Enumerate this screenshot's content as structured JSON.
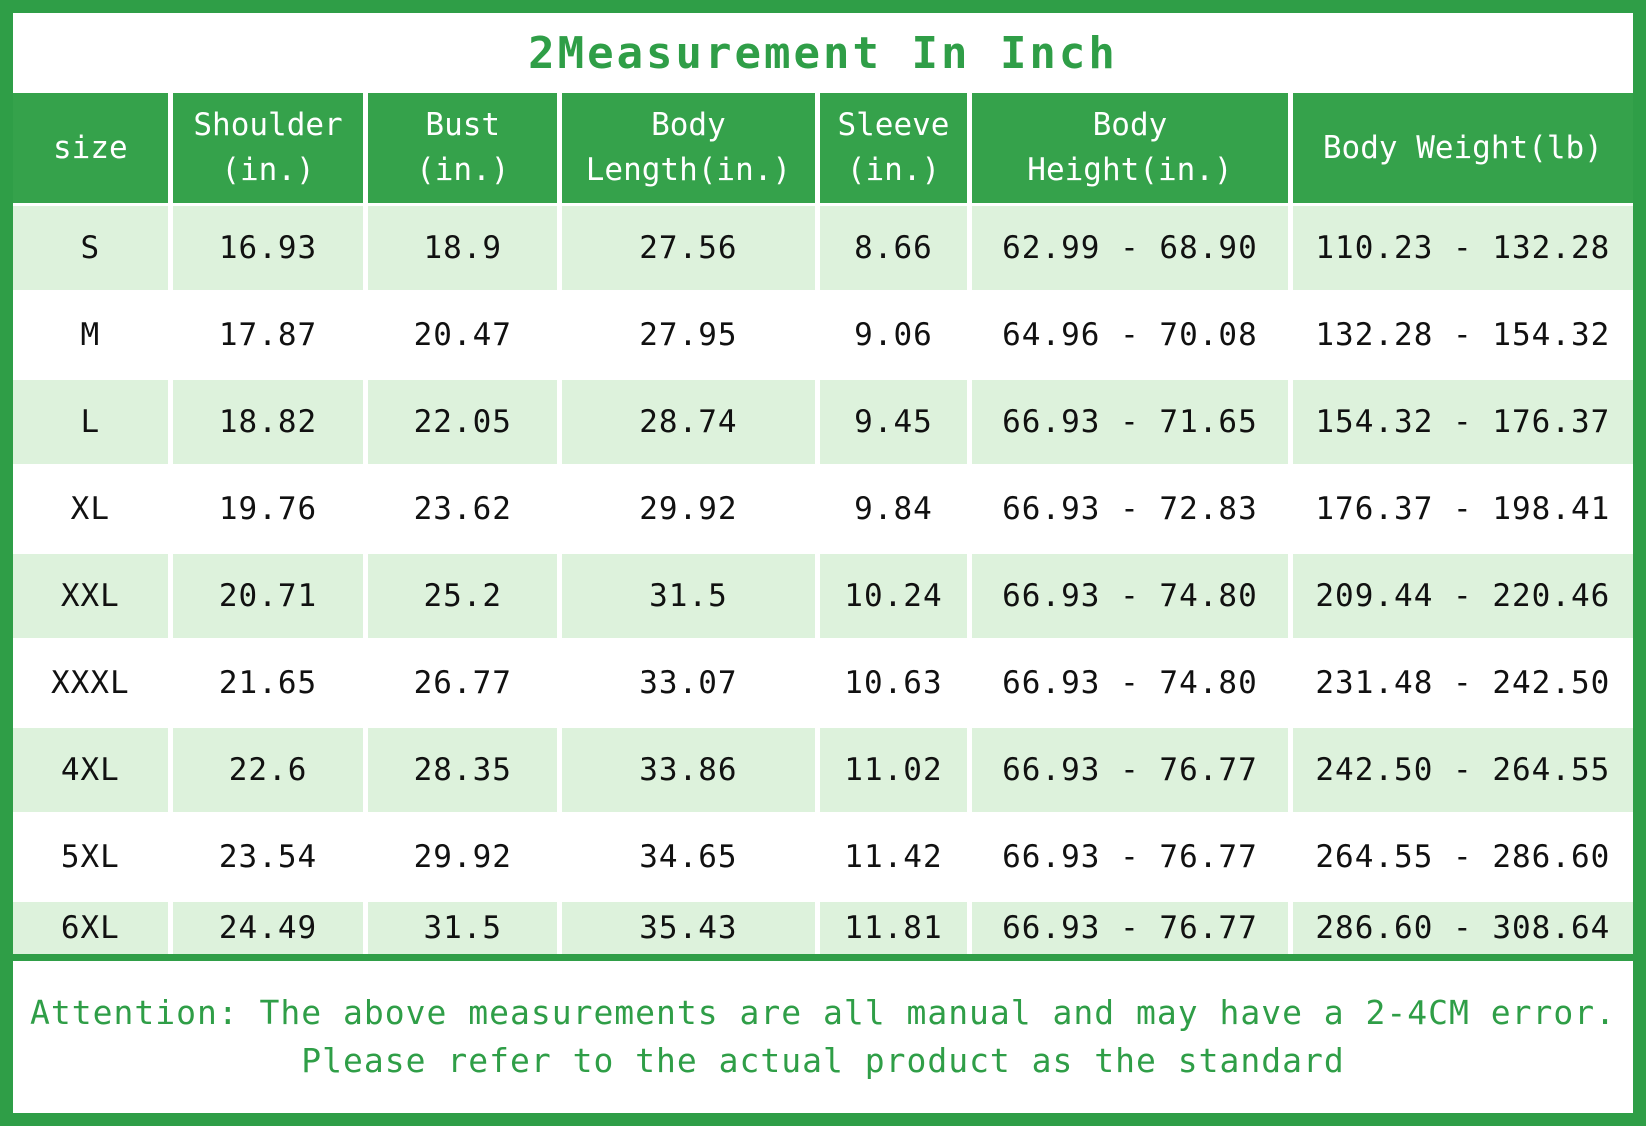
{
  "title": "2Measurement In Inch",
  "colors": {
    "frame_border": "#2f9e47",
    "header_bg": "#35a24b",
    "header_text": "#ffffff",
    "row_alt_bg": "#ddf2dc",
    "body_text": "#111111",
    "title_text": "#2f9e47",
    "footer_text": "#2f9e47"
  },
  "chart_data": {
    "type": "table",
    "title": "2Measurement In Inch",
    "columns": [
      "size",
      "Shoulder\n(in.)",
      "Bust\n(in.)",
      "Body\nLength(in.)",
      "Sleeve\n(in.)",
      "Body\nHeight(in.)",
      "Body Weight(lb)"
    ],
    "rows": [
      [
        "S",
        "16.93",
        "18.9",
        "27.56",
        "8.66",
        "62.99 - 68.90",
        "110.23 - 132.28"
      ],
      [
        "M",
        "17.87",
        "20.47",
        "27.95",
        "9.06",
        "64.96 - 70.08",
        "132.28 - 154.32"
      ],
      [
        "L",
        "18.82",
        "22.05",
        "28.74",
        "9.45",
        "66.93 - 71.65",
        "154.32 - 176.37"
      ],
      [
        "XL",
        "19.76",
        "23.62",
        "29.92",
        "9.84",
        "66.93 - 72.83",
        "176.37 - 198.41"
      ],
      [
        "XXL",
        "20.71",
        "25.2",
        "31.5",
        "10.24",
        "66.93 - 74.80",
        "209.44 - 220.46"
      ],
      [
        "XXXL",
        "21.65",
        "26.77",
        "33.07",
        "10.63",
        "66.93 - 74.80",
        "231.48 - 242.50"
      ],
      [
        "4XL",
        "22.6",
        "28.35",
        "33.86",
        "11.02",
        "66.93 - 76.77",
        "242.50 - 264.55"
      ],
      [
        "5XL",
        "23.54",
        "29.92",
        "34.65",
        "11.42",
        "66.93 - 76.77",
        "264.55 - 286.60"
      ],
      [
        "6XL",
        "24.49",
        "31.5",
        "35.43",
        "11.81",
        "66.93 - 76.77",
        "286.60 - 308.64"
      ]
    ]
  },
  "footer": {
    "line1": "Attention: The above measurements are all manual and may have a 2-4CM error.",
    "line2": "Please refer to the actual product as the standard"
  }
}
